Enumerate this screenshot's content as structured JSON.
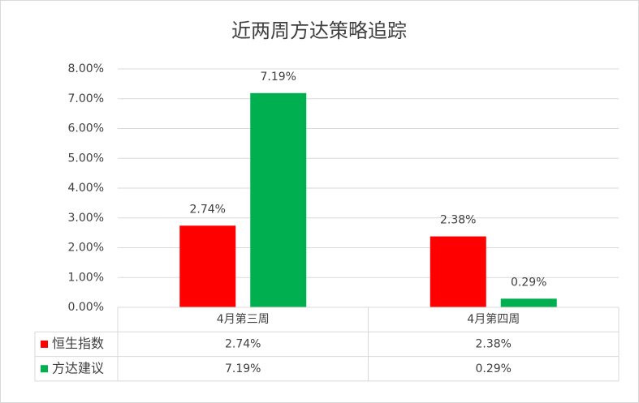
{
  "chart_data": {
    "type": "bar",
    "title": "近两周方达策略追踪",
    "categories": [
      "4月第三周",
      "4月第四周"
    ],
    "series": [
      {
        "name": "恒生指数",
        "color": "#ff0000",
        "values": [
          2.74,
          2.38
        ],
        "value_labels": [
          "2.74%",
          "2.38%"
        ]
      },
      {
        "name": "方达建议",
        "color": "#00b050",
        "values": [
          7.19,
          0.29
        ],
        "value_labels": [
          "7.19%",
          "0.29%"
        ]
      }
    ],
    "ylim": [
      0,
      8
    ],
    "yticks": [
      {
        "value": 0,
        "label": "0.00%"
      },
      {
        "value": 1,
        "label": "1.00%"
      },
      {
        "value": 2,
        "label": "2.00%"
      },
      {
        "value": 3,
        "label": "3.00%"
      },
      {
        "value": 4,
        "label": "4.00%"
      },
      {
        "value": 5,
        "label": "5.00%"
      },
      {
        "value": 6,
        "label": "6.00%"
      },
      {
        "value": 7,
        "label": "7.00%"
      },
      {
        "value": 8,
        "label": "8.00%"
      }
    ],
    "grid": true
  }
}
